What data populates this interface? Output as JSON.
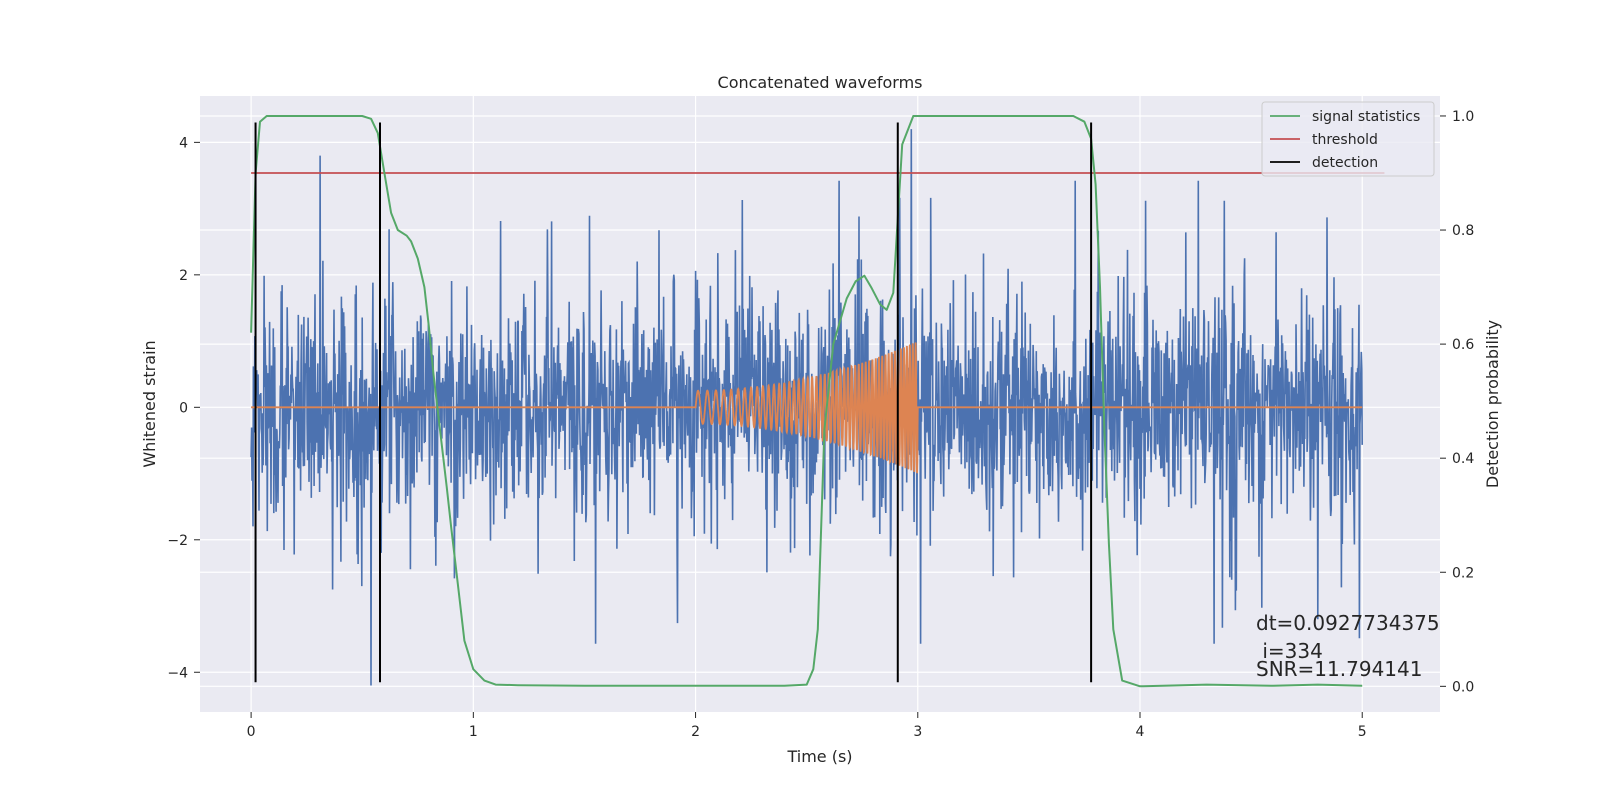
{
  "chart_data": {
    "type": "line",
    "title": "Concatenated waveforms",
    "xlabel": "Time (s)",
    "ylabel": "Whitened strain",
    "y2label": "Detection probability",
    "xlim": [
      -0.23,
      5.35
    ],
    "ylim": [
      -4.6,
      4.7
    ],
    "y2lim": [
      -0.045,
      1.035
    ],
    "xticks": [
      0,
      1,
      2,
      3,
      4,
      5
    ],
    "yticks": [
      -4,
      -2,
      0,
      2,
      4
    ],
    "y2ticks": [
      0.0,
      0.2,
      0.4,
      0.6,
      0.8,
      1.0
    ],
    "xtick_labels": [
      "0",
      "1",
      "2",
      "3",
      "4",
      "5"
    ],
    "ytick_labels": [
      "−4",
      "−2",
      "0",
      "2",
      "4"
    ],
    "y2tick_labels": [
      "0.0",
      "0.2",
      "0.4",
      "0.6",
      "0.8",
      "1.0"
    ],
    "grid": true,
    "legend_position": "top-right",
    "colors": {
      "strain": "#4c72b0",
      "template": "#dd8452",
      "signal_statistics": "#55a868",
      "threshold": "#c44e52",
      "detection": "#000000",
      "background": "#eaeaf2",
      "grid": "#ffffff"
    },
    "strain_noise": {
      "x_range": [
        0,
        5
      ],
      "amplitude_core": 0.8,
      "peak_range": [
        -4.2,
        3.8
      ],
      "notable_spikes": [
        {
          "x": 0.31,
          "y": 3.8
        },
        {
          "x": 0.54,
          "y": -4.2
        },
        {
          "x": 2.97,
          "y": 4.2
        },
        {
          "x": 4.8,
          "y": -3.2
        }
      ]
    },
    "template": {
      "x_start": 2.0,
      "x_end": 3.0,
      "amplitude_start": 0.25,
      "amplitude_end": 1.0
    },
    "series": [
      {
        "name": "signal statistics",
        "axis": "right",
        "x": [
          0.0,
          0.02,
          0.04,
          0.07,
          0.1,
          0.2,
          0.3,
          0.4,
          0.5,
          0.54,
          0.57,
          0.6,
          0.63,
          0.66,
          0.7,
          0.72,
          0.75,
          0.78,
          0.8,
          0.82,
          0.85,
          0.88,
          0.9,
          0.93,
          0.96,
          1.0,
          1.05,
          1.1,
          1.2,
          1.5,
          2.0,
          2.4,
          2.5,
          2.53,
          2.55,
          2.58,
          2.62,
          2.68,
          2.72,
          2.76,
          2.79,
          2.83,
          2.86,
          2.89,
          2.93,
          2.98,
          3.2,
          3.5,
          3.7,
          3.75,
          3.78,
          3.8,
          3.82,
          3.84,
          3.86,
          3.88,
          3.92,
          4.0,
          4.3,
          4.6,
          4.8,
          5.0
        ],
        "y": [
          0.62,
          0.9,
          0.99,
          1.0,
          1.0,
          1.0,
          1.0,
          1.0,
          1.0,
          0.995,
          0.97,
          0.9,
          0.83,
          0.8,
          0.79,
          0.78,
          0.75,
          0.7,
          0.63,
          0.55,
          0.45,
          0.35,
          0.28,
          0.18,
          0.08,
          0.03,
          0.01,
          0.003,
          0.002,
          0.001,
          0.001,
          0.001,
          0.003,
          0.03,
          0.1,
          0.45,
          0.6,
          0.68,
          0.71,
          0.72,
          0.7,
          0.67,
          0.66,
          0.69,
          0.95,
          1.0,
          1.0,
          1.0,
          1.0,
          0.99,
          0.96,
          0.88,
          0.7,
          0.45,
          0.25,
          0.1,
          0.01,
          0.0,
          0.003,
          0.001,
          0.003,
          0.001
        ]
      },
      {
        "name": "threshold",
        "axis": "right",
        "x": [
          0.0,
          5.1
        ],
        "y": [
          0.9,
          0.9
        ]
      },
      {
        "name": "detection",
        "axis": "left",
        "x": [
          0.02,
          0.58,
          2.91,
          3.78
        ],
        "y_range": [
          -4.15,
          4.3
        ]
      }
    ],
    "annotations": [
      "dt=0.0927734375",
      " i=334",
      "SNR=11.794141"
    ]
  }
}
